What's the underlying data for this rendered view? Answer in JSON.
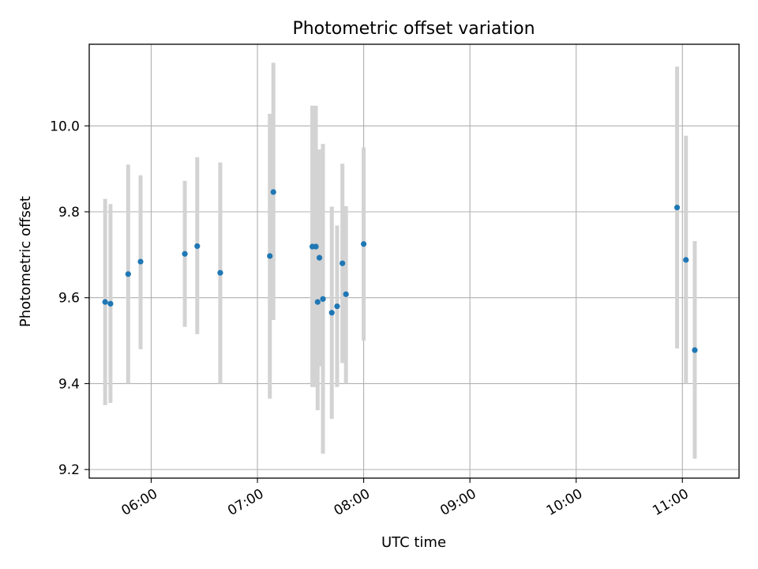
{
  "chart_data": {
    "type": "scatter",
    "title": "Photometric offset variation",
    "xlabel": "UTC time",
    "ylabel": "Photometric offset",
    "x_axis_type": "time",
    "x_ticks": [
      "06:00",
      "07:00",
      "08:00",
      "09:00",
      "10:00",
      "11:00"
    ],
    "y_ticks": [
      9.2,
      9.4,
      9.6,
      9.8,
      10.0
    ],
    "y_tick_labels": [
      "9.2",
      "9.4",
      "9.6",
      "9.8",
      "10.0"
    ],
    "xlim": [
      "05:25",
      "11:32"
    ],
    "ylim": [
      9.18,
      10.19
    ],
    "grid": true,
    "colors": {
      "marker": "#1f77b4",
      "errorbar": "#d3d3d3",
      "grid": "#b0b0b0"
    },
    "points": [
      {
        "x": "05:34",
        "y": 9.59,
        "yerr_low": 9.35,
        "yerr_high": 9.83
      },
      {
        "x": "05:37",
        "y": 9.586,
        "yerr_low": 9.355,
        "yerr_high": 9.818
      },
      {
        "x": "05:47",
        "y": 9.655,
        "yerr_low": 9.4,
        "yerr_high": 9.91
      },
      {
        "x": "05:54",
        "y": 9.684,
        "yerr_low": 9.48,
        "yerr_high": 9.885
      },
      {
        "x": "06:19",
        "y": 9.702,
        "yerr_low": 9.532,
        "yerr_high": 9.872
      },
      {
        "x": "06:26",
        "y": 9.72,
        "yerr_low": 9.515,
        "yerr_high": 9.927
      },
      {
        "x": "06:39",
        "y": 9.658,
        "yerr_low": 9.4,
        "yerr_high": 9.915
      },
      {
        "x": "07:07",
        "y": 9.697,
        "yerr_low": 9.365,
        "yerr_high": 10.028
      },
      {
        "x": "07:09",
        "y": 9.846,
        "yerr_low": 9.548,
        "yerr_high": 10.147
      },
      {
        "x": "07:31",
        "y": 9.719,
        "yerr_low": 9.392,
        "yerr_high": 10.047
      },
      {
        "x": "07:33",
        "y": 9.719,
        "yerr_low": 9.392,
        "yerr_high": 10.047
      },
      {
        "x": "07:34",
        "y": 9.59,
        "yerr_low": 9.338,
        "yerr_high": 9.85
      },
      {
        "x": "07:35",
        "y": 9.693,
        "yerr_low": 9.44,
        "yerr_high": 9.945
      },
      {
        "x": "07:37",
        "y": 9.597,
        "yerr_low": 9.237,
        "yerr_high": 9.958
      },
      {
        "x": "07:42",
        "y": 9.565,
        "yerr_low": 9.318,
        "yerr_high": 9.812
      },
      {
        "x": "07:45",
        "y": 9.58,
        "yerr_low": 9.392,
        "yerr_high": 9.768
      },
      {
        "x": "07:48",
        "y": 9.68,
        "yerr_low": 9.448,
        "yerr_high": 9.912
      },
      {
        "x": "07:50",
        "y": 9.608,
        "yerr_low": 9.4,
        "yerr_high": 9.813
      },
      {
        "x": "08:00",
        "y": 9.725,
        "yerr_low": 9.5,
        "yerr_high": 9.95
      },
      {
        "x": "10:57",
        "y": 9.81,
        "yerr_low": 9.482,
        "yerr_high": 10.138
      },
      {
        "x": "11:02",
        "y": 9.688,
        "yerr_low": 9.4,
        "yerr_high": 9.977
      },
      {
        "x": "11:07",
        "y": 9.478,
        "yerr_low": 9.225,
        "yerr_high": 9.732
      }
    ]
  }
}
